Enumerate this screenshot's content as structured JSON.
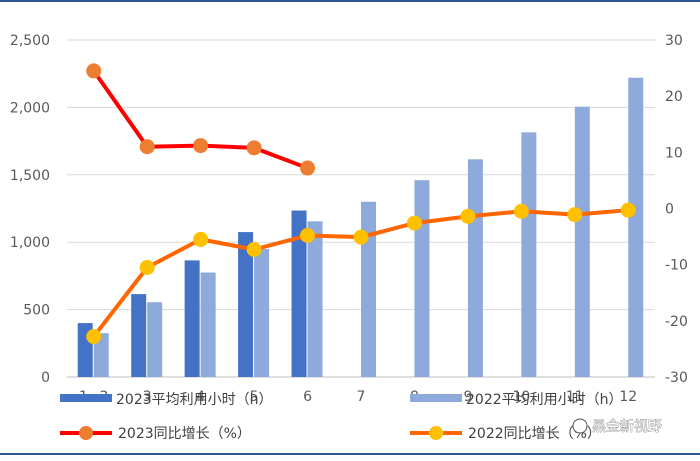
{
  "chart_data": {
    "type": "bar+line",
    "title": "",
    "categories": [
      "1~2",
      "3",
      "4",
      "5",
      "6",
      "7",
      "8",
      "9",
      "10",
      "11",
      "12"
    ],
    "left_axis": {
      "range": [
        0,
        2500
      ],
      "ticks": [
        "0",
        "500",
        "1,000",
        "1,500",
        "2,000",
        "2,500"
      ],
      "tick_values": [
        0,
        500,
        1000,
        1500,
        2000,
        2500
      ]
    },
    "right_axis": {
      "range": [
        -30,
        30
      ],
      "ticks": [
        "-30",
        "-20",
        "-10",
        "0",
        "10",
        "20",
        "30"
      ],
      "tick_values": [
        -30,
        -20,
        -10,
        0,
        10,
        20,
        30
      ]
    },
    "bar_series": [
      {
        "name": "2023平均利用小时（h）",
        "color": "#4472c4",
        "values": [
          400,
          615,
          865,
          1075,
          1235,
          null,
          null,
          null,
          null,
          null,
          null
        ]
      },
      {
        "name": "2022平均利用小时（h）",
        "color": "#8eaadb",
        "values": [
          325,
          555,
          775,
          950,
          1155,
          1300,
          1460,
          1615,
          1815,
          2005,
          2220
        ]
      }
    ],
    "line_series": [
      {
        "name": "2023同比增长（%）",
        "color": "#ff0000",
        "marker_color": "#ed7d31",
        "values": [
          24.5,
          11.0,
          11.2,
          10.8,
          7.2,
          null,
          null,
          null,
          null,
          null,
          null
        ]
      },
      {
        "name": "2022同比增长（%）",
        "color": "#ff6600",
        "marker_color": "#ffc000",
        "values": [
          -22.8,
          -10.5,
          -5.5,
          -7.3,
          -4.8,
          -5.1,
          -2.6,
          -1.4,
          -0.5,
          -1.1,
          -0.3
        ]
      }
    ],
    "grid": true
  },
  "watermark": "黑金新视野"
}
